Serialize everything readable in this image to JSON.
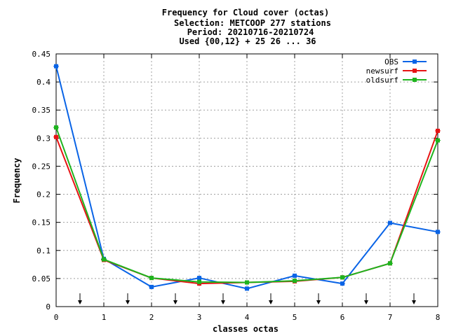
{
  "title_lines": [
    "Frequency  for Cloud cover (octas)",
    "Selection: METCOOP    277 stations",
    "Period: 20210716-20210724",
    "Used {00,12} + 25 26 ... 36"
  ],
  "chart_data": {
    "type": "line",
    "xlabel": "classes octas",
    "ylabel": "Frequency",
    "xlim": [
      0,
      8
    ],
    "ylim": [
      0,
      0.45
    ],
    "grid": true,
    "legend_position": "top-right",
    "x_ticks": [
      "0",
      "1",
      "2",
      "3",
      "4",
      "5",
      "6",
      "7",
      "8"
    ],
    "y_ticks": [
      "0",
      "0.05",
      "0.1",
      "0.15",
      "0.2",
      "0.25",
      "0.3",
      "0.35",
      "0.4",
      "0.45"
    ],
    "x": [
      0,
      1,
      2,
      3,
      4,
      5,
      6,
      7,
      8
    ],
    "series": [
      {
        "name": "OBS",
        "color": "#0a64e6",
        "values": [
          0.428,
          0.085,
          0.035,
          0.051,
          0.032,
          0.055,
          0.041,
          0.149,
          0.133
        ]
      },
      {
        "name": "newsurf",
        "color": "#e61414",
        "values": [
          0.302,
          0.083,
          0.051,
          0.041,
          0.043,
          0.045,
          0.052,
          0.077,
          0.313
        ]
      },
      {
        "name": "oldsurf",
        "color": "#1eb41e",
        "values": [
          0.319,
          0.084,
          0.051,
          0.044,
          0.043,
          0.046,
          0.052,
          0.077,
          0.296
        ]
      }
    ],
    "arrow_markers_x": [
      0.5,
      1.5,
      2.5,
      3.5,
      4.5,
      5.5,
      6.5,
      7.5
    ]
  }
}
